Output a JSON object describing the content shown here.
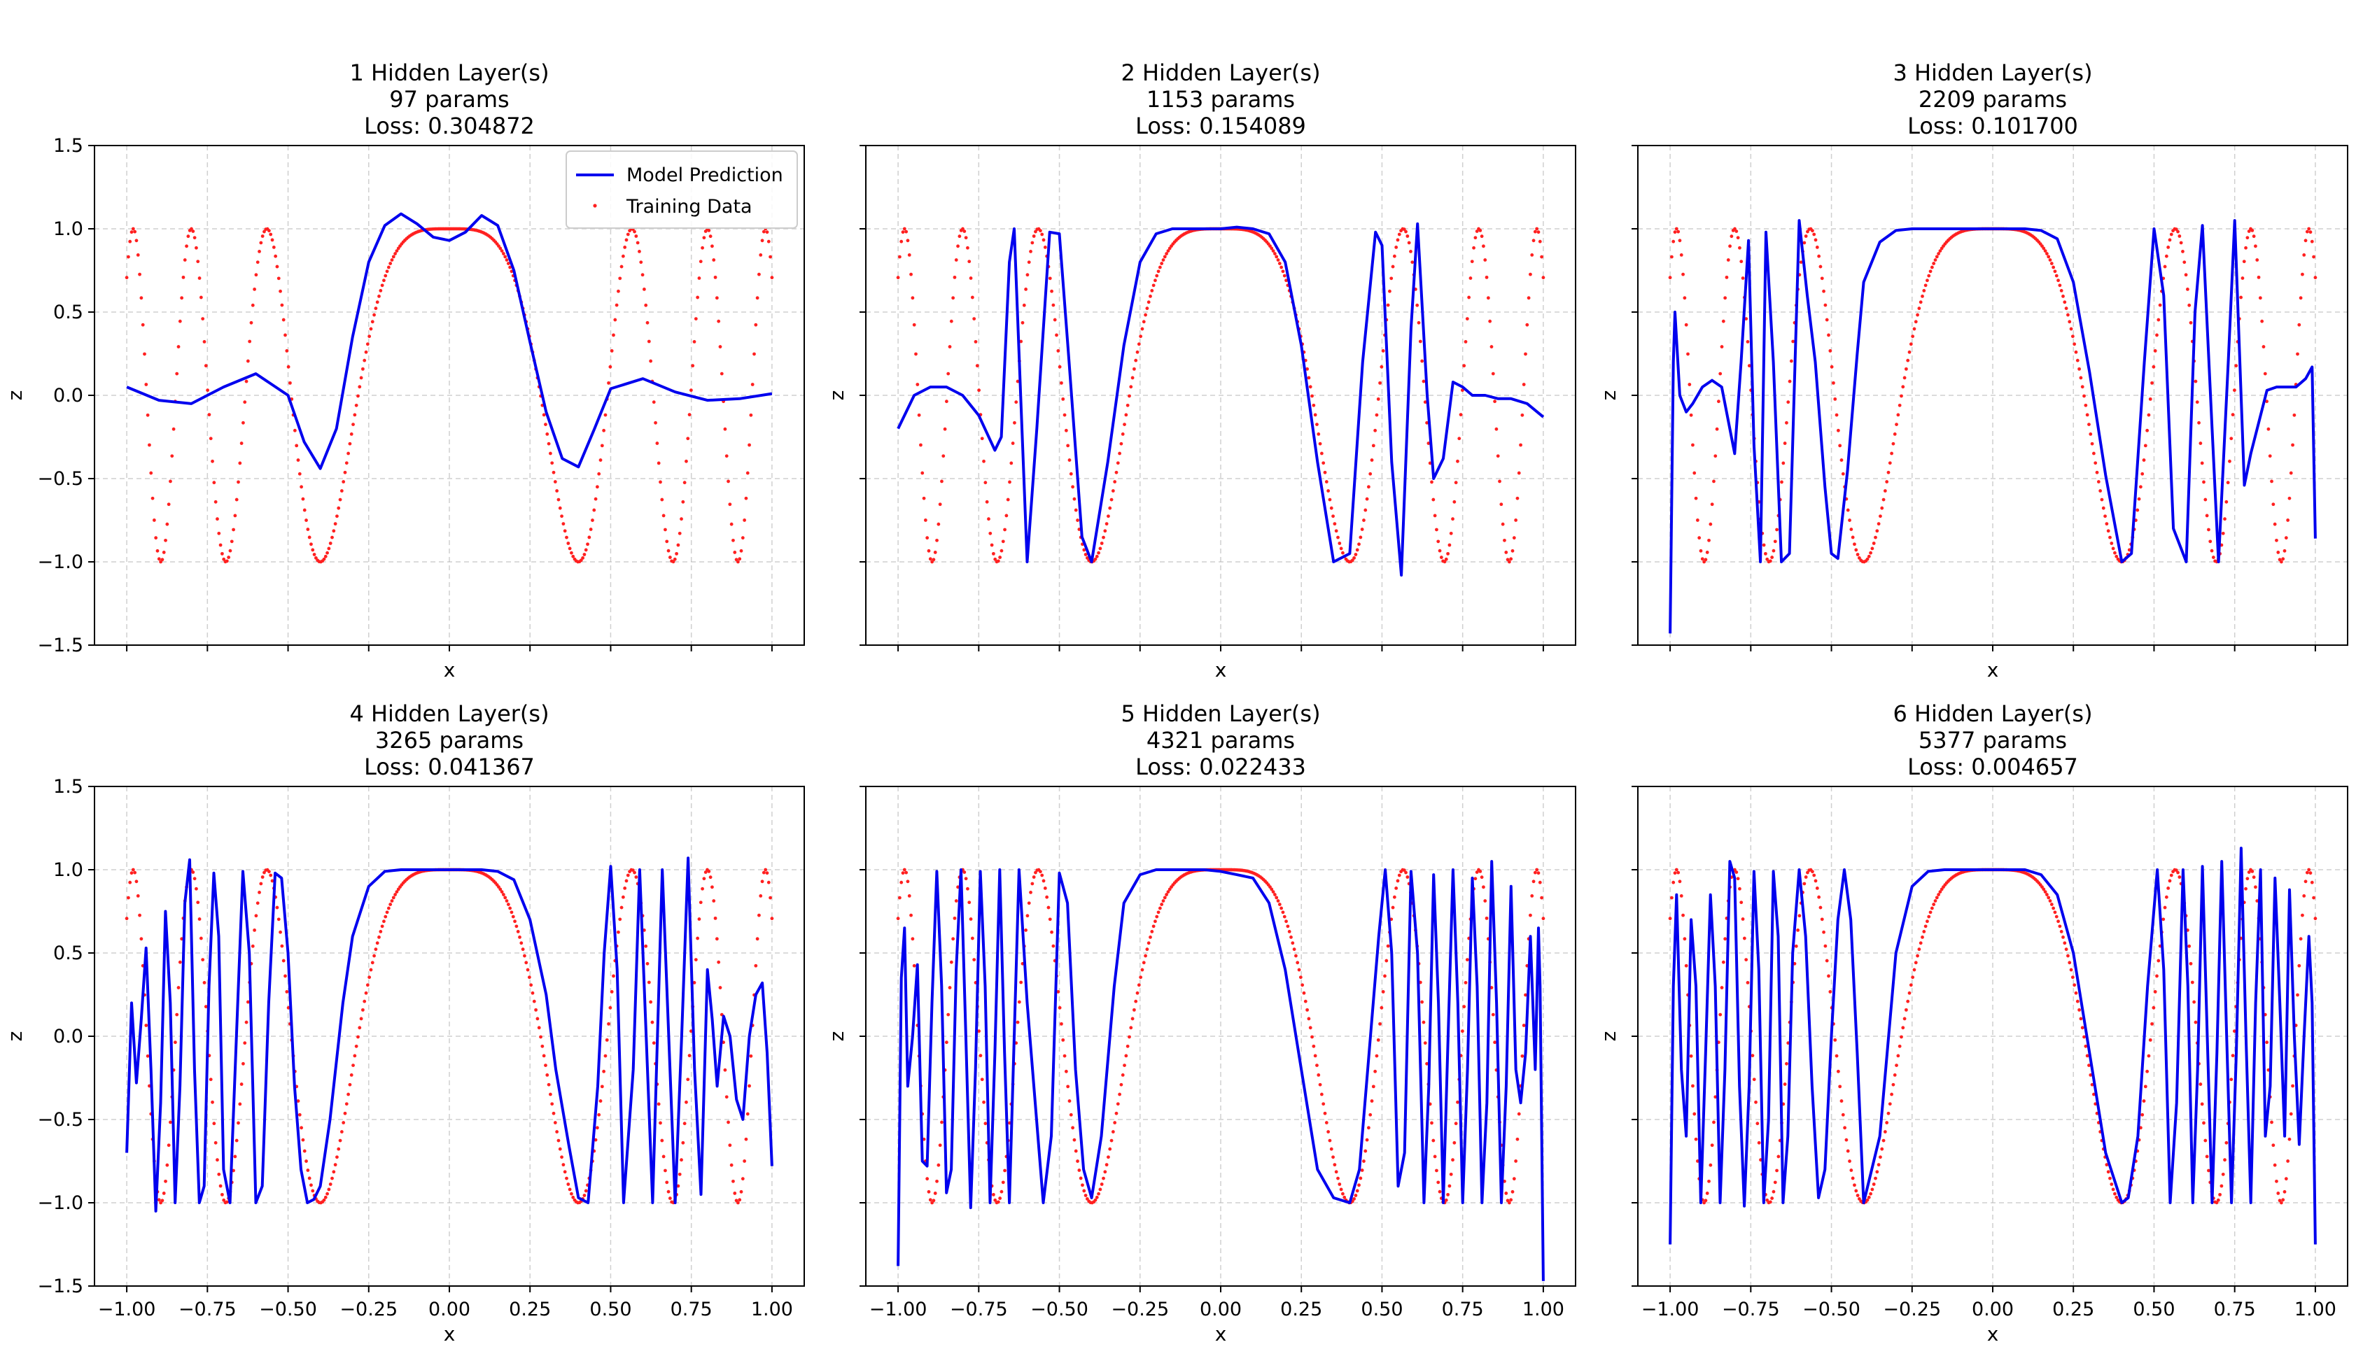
{
  "chart_data": {
    "type": "line",
    "layout": "2x3 grid of subplots, shared x and y axes",
    "panels": [
      {
        "title_lines": [
          "1 Hidden Layer(s)",
          "97 params",
          "Loss: 0.304872"
        ],
        "hidden_layers": 1,
        "params": 97,
        "loss": 0.304872,
        "xlabel": "x",
        "ylabel": "z",
        "legend": true,
        "legend_placement": "top-right"
      },
      {
        "title_lines": [
          "2 Hidden Layer(s)",
          "1153 params",
          "Loss: 0.154089"
        ],
        "hidden_layers": 2,
        "params": 1153,
        "loss": 0.154089,
        "xlabel": "x",
        "ylabel": "z",
        "legend": false
      },
      {
        "title_lines": [
          "3 Hidden Layer(s)",
          "2209 params",
          "Loss: 0.101700"
        ],
        "hidden_layers": 3,
        "params": 2209,
        "loss": 0.1017,
        "xlabel": "x",
        "ylabel": "z",
        "legend": false
      },
      {
        "title_lines": [
          "4 Hidden Layer(s)",
          "3265 params",
          "Loss: 0.041367"
        ],
        "hidden_layers": 4,
        "params": 3265,
        "loss": 0.041367,
        "xlabel": "x",
        "ylabel": "z",
        "legend": false
      },
      {
        "title_lines": [
          "5 Hidden Layer(s)",
          "4321 params",
          "Loss: 0.022433"
        ],
        "hidden_layers": 5,
        "params": 4321,
        "loss": 0.022433,
        "xlabel": "x",
        "ylabel": "z",
        "legend": false
      },
      {
        "title_lines": [
          "6 Hidden Layer(s)",
          "5377 params",
          "Loss: 0.004657"
        ],
        "hidden_layers": 6,
        "params": 5377,
        "loss": 0.004657,
        "xlabel": "x",
        "ylabel": "z",
        "legend": false
      }
    ],
    "series": [
      {
        "name": "Model Prediction",
        "style": "line",
        "color": "#0000ee"
      },
      {
        "name": "Training Data",
        "style": "scatter",
        "color": "#ff2020"
      }
    ],
    "training_function": "z = cos(2 * pi * 0.5 * (x / 0.4)^2)  (estimated from the red training points)",
    "prediction_curves": [
      {
        "x": [
          -1,
          -0.9,
          -0.8,
          -0.7,
          -0.6,
          -0.5,
          -0.45,
          -0.4,
          -0.35,
          -0.3,
          -0.25,
          -0.2,
          -0.15,
          -0.1,
          -0.05,
          0,
          0.05,
          0.1,
          0.15,
          0.2,
          0.25,
          0.3,
          0.35,
          0.4,
          0.45,
          0.5,
          0.6,
          0.7,
          0.8,
          0.9,
          1
        ],
        "y": [
          0.05,
          -0.03,
          -0.05,
          0.05,
          0.13,
          0.0,
          -0.28,
          -0.44,
          -0.2,
          0.35,
          0.8,
          1.02,
          1.09,
          1.03,
          0.95,
          0.93,
          0.98,
          1.08,
          1.02,
          0.75,
          0.32,
          -0.1,
          -0.38,
          -0.43,
          -0.2,
          0.04,
          0.1,
          0.02,
          -0.03,
          -0.02,
          0.01
        ]
      },
      {
        "x": [
          -1,
          -0.95,
          -0.9,
          -0.85,
          -0.8,
          -0.75,
          -0.7,
          -0.68,
          -0.655,
          -0.64,
          -0.62,
          -0.6,
          -0.57,
          -0.53,
          -0.5,
          -0.47,
          -0.43,
          -0.4,
          -0.35,
          -0.3,
          -0.25,
          -0.2,
          -0.15,
          -0.1,
          -0.05,
          0,
          0.05,
          0.1,
          0.15,
          0.2,
          0.25,
          0.3,
          0.35,
          0.4,
          0.44,
          0.48,
          0.5,
          0.53,
          0.56,
          0.59,
          0.61,
          0.64,
          0.66,
          0.69,
          0.72,
          0.75,
          0.78,
          0.82,
          0.86,
          0.9,
          0.95,
          1
        ],
        "y": [
          -0.2,
          0.0,
          0.05,
          0.05,
          0.0,
          -0.12,
          -0.33,
          -0.25,
          0.8,
          1.0,
          0.0,
          -1.0,
          -0.2,
          0.98,
          0.97,
          0.2,
          -0.85,
          -1.0,
          -0.4,
          0.3,
          0.8,
          0.97,
          1.0,
          1.0,
          1.0,
          1.0,
          1.01,
          1.0,
          0.97,
          0.8,
          0.3,
          -0.4,
          -1.0,
          -0.95,
          0.2,
          0.98,
          0.9,
          -0.4,
          -1.08,
          0.4,
          1.03,
          0.0,
          -0.5,
          -0.38,
          0.08,
          0.05,
          0.0,
          0.0,
          -0.02,
          -0.02,
          -0.05,
          -0.13
        ]
      },
      {
        "x": [
          -1,
          -0.99,
          -0.985,
          -0.97,
          -0.95,
          -0.93,
          -0.9,
          -0.87,
          -0.84,
          -0.8,
          -0.78,
          -0.757,
          -0.74,
          -0.72,
          -0.703,
          -0.68,
          -0.655,
          -0.63,
          -0.6,
          -0.575,
          -0.55,
          -0.52,
          -0.5,
          -0.48,
          -0.45,
          -0.42,
          -0.4,
          -0.35,
          -0.3,
          -0.25,
          -0.2,
          -0.15,
          -0.1,
          -0.05,
          0,
          0.05,
          0.1,
          0.15,
          0.2,
          0.25,
          0.3,
          0.35,
          0.4,
          0.43,
          0.47,
          0.5,
          0.53,
          0.56,
          0.6,
          0.627,
          0.65,
          0.68,
          0.7,
          0.73,
          0.75,
          0.78,
          0.8,
          0.85,
          0.88,
          0.91,
          0.94,
          0.97,
          0.99,
          1
        ],
        "y": [
          -1.43,
          0.2,
          0.5,
          0.0,
          -0.1,
          -0.05,
          0.05,
          0.09,
          0.05,
          -0.35,
          0.2,
          0.93,
          -0.3,
          -1.0,
          0.98,
          0.2,
          -1.0,
          -0.95,
          1.05,
          0.6,
          0.2,
          -0.55,
          -0.95,
          -0.98,
          -0.45,
          0.25,
          0.68,
          0.92,
          0.99,
          1.0,
          1.0,
          1.0,
          1.0,
          1.0,
          1.0,
          1.0,
          1.0,
          0.99,
          0.94,
          0.68,
          0.14,
          -0.48,
          -1.0,
          -0.95,
          0.2,
          1.0,
          0.6,
          -0.8,
          -1.0,
          0.5,
          1.02,
          -0.2,
          -1.0,
          0.2,
          1.05,
          -0.54,
          -0.35,
          0.03,
          0.05,
          0.05,
          0.05,
          0.1,
          0.17,
          -0.86
        ]
      },
      {
        "x": [
          -1,
          -0.985,
          -0.97,
          -0.955,
          -0.94,
          -0.925,
          -0.91,
          -0.895,
          -0.88,
          -0.865,
          -0.85,
          -0.835,
          -0.82,
          -0.805,
          -0.79,
          -0.775,
          -0.76,
          -0.745,
          -0.73,
          -0.715,
          -0.7,
          -0.68,
          -0.66,
          -0.64,
          -0.62,
          -0.6,
          -0.58,
          -0.56,
          -0.54,
          -0.52,
          -0.5,
          -0.48,
          -0.46,
          -0.44,
          -0.42,
          -0.4,
          -0.37,
          -0.33,
          -0.3,
          -0.25,
          -0.2,
          -0.15,
          -0.1,
          -0.05,
          0,
          0.05,
          0.1,
          0.15,
          0.2,
          0.25,
          0.3,
          0.33,
          0.37,
          0.4,
          0.43,
          0.46,
          0.48,
          0.5,
          0.52,
          0.54,
          0.57,
          0.59,
          0.61,
          0.63,
          0.645,
          0.66,
          0.68,
          0.7,
          0.72,
          0.74,
          0.76,
          0.78,
          0.8,
          0.815,
          0.83,
          0.85,
          0.87,
          0.89,
          0.91,
          0.93,
          0.95,
          0.97,
          0.985,
          1
        ],
        "y": [
          -0.7,
          0.2,
          -0.28,
          0.1,
          0.53,
          -0.2,
          -1.05,
          -0.4,
          0.75,
          0.2,
          -1.0,
          -0.3,
          0.8,
          1.06,
          -0.2,
          -1.0,
          -0.9,
          0.3,
          0.98,
          0.6,
          -0.8,
          -1.0,
          0.0,
          0.99,
          0.5,
          -1.0,
          -0.9,
          0.2,
          0.98,
          0.95,
          0.5,
          -0.3,
          -0.8,
          -1.0,
          -0.98,
          -0.9,
          -0.5,
          0.2,
          0.6,
          0.9,
          0.99,
          1.0,
          1.0,
          1.0,
          1.0,
          1.0,
          1.0,
          0.99,
          0.94,
          0.7,
          0.25,
          -0.2,
          -0.65,
          -0.97,
          -1.0,
          -0.3,
          0.5,
          1.02,
          0.4,
          -1.0,
          -0.2,
          1.0,
          0.0,
          -1.0,
          0.0,
          1.0,
          0.0,
          -1.0,
          0.0,
          1.07,
          -0.2,
          -0.95,
          0.4,
          0.1,
          -0.3,
          0.12,
          0.0,
          -0.38,
          -0.5,
          0.0,
          0.25,
          0.32,
          -0.1,
          -0.78
        ]
      },
      {
        "x": [
          -1,
          -0.99,
          -0.98,
          -0.97,
          -0.955,
          -0.94,
          -0.925,
          -0.91,
          -0.895,
          -0.88,
          -0.865,
          -0.85,
          -0.835,
          -0.82,
          -0.805,
          -0.79,
          -0.775,
          -0.76,
          -0.745,
          -0.73,
          -0.715,
          -0.7,
          -0.685,
          -0.67,
          -0.655,
          -0.64,
          -0.625,
          -0.6,
          -0.575,
          -0.55,
          -0.525,
          -0.5,
          -0.475,
          -0.45,
          -0.425,
          -0.4,
          -0.37,
          -0.33,
          -0.3,
          -0.25,
          -0.2,
          -0.15,
          -0.1,
          -0.05,
          0,
          0.05,
          0.1,
          0.15,
          0.2,
          0.25,
          0.3,
          0.35,
          0.4,
          0.43,
          0.46,
          0.49,
          0.51,
          0.53,
          0.55,
          0.57,
          0.59,
          0.61,
          0.63,
          0.645,
          0.66,
          0.675,
          0.69,
          0.705,
          0.72,
          0.735,
          0.75,
          0.765,
          0.78,
          0.795,
          0.81,
          0.825,
          0.84,
          0.855,
          0.87,
          0.885,
          0.9,
          0.915,
          0.93,
          0.945,
          0.96,
          0.975,
          0.985,
          0.99,
          1
        ],
        "y": [
          -1.38,
          0.35,
          0.65,
          -0.3,
          0.0,
          0.43,
          -0.75,
          -0.78,
          0.2,
          0.99,
          0.3,
          -0.94,
          -0.8,
          0.4,
          1.0,
          0.0,
          -1.03,
          -0.2,
          0.99,
          0.3,
          -1.0,
          -0.1,
          1.0,
          -0.1,
          -1.0,
          0.0,
          1.0,
          0.2,
          -0.4,
          -1.0,
          -0.6,
          0.98,
          0.8,
          -0.2,
          -0.8,
          -0.97,
          -0.6,
          0.3,
          0.8,
          0.97,
          1.0,
          1.0,
          1.0,
          1.0,
          0.99,
          0.97,
          0.95,
          0.8,
          0.4,
          -0.2,
          -0.8,
          -0.97,
          -1.0,
          -0.8,
          -0.1,
          0.6,
          1.0,
          0.5,
          -0.9,
          -0.7,
          0.99,
          0.5,
          -1.0,
          -0.3,
          0.97,
          0.2,
          -1.0,
          0.0,
          1.0,
          0.2,
          -1.0,
          -0.2,
          0.95,
          0.3,
          -1.0,
          -0.4,
          1.05,
          0.2,
          -1.0,
          -0.3,
          0.9,
          -0.2,
          -0.4,
          -0.1,
          0.6,
          -0.2,
          0.65,
          0.3,
          -1.47
        ]
      },
      {
        "x": [
          -1,
          -0.99,
          -0.98,
          -0.965,
          -0.95,
          -0.935,
          -0.92,
          -0.905,
          -0.89,
          -0.875,
          -0.86,
          -0.845,
          -0.83,
          -0.815,
          -0.8,
          -0.785,
          -0.77,
          -0.755,
          -0.74,
          -0.725,
          -0.71,
          -0.695,
          -0.68,
          -0.665,
          -0.65,
          -0.635,
          -0.62,
          -0.6,
          -0.58,
          -0.56,
          -0.54,
          -0.52,
          -0.5,
          -0.48,
          -0.46,
          -0.44,
          -0.42,
          -0.4,
          -0.35,
          -0.3,
          -0.25,
          -0.2,
          -0.15,
          -0.1,
          -0.05,
          0,
          0.05,
          0.1,
          0.15,
          0.2,
          0.25,
          0.3,
          0.35,
          0.4,
          0.42,
          0.45,
          0.48,
          0.51,
          0.53,
          0.55,
          0.57,
          0.59,
          0.605,
          0.62,
          0.635,
          0.65,
          0.665,
          0.68,
          0.695,
          0.71,
          0.725,
          0.74,
          0.755,
          0.77,
          0.785,
          0.8,
          0.815,
          0.83,
          0.845,
          0.86,
          0.875,
          0.89,
          0.905,
          0.92,
          0.935,
          0.95,
          0.965,
          0.98,
          0.99,
          1
        ],
        "y": [
          -1.25,
          0.3,
          0.85,
          -0.2,
          -0.6,
          0.7,
          0.3,
          -1.0,
          -0.1,
          0.85,
          0.3,
          -1.0,
          -0.2,
          1.05,
          0.95,
          -0.3,
          -1.02,
          -0.3,
          0.99,
          0.4,
          -1.0,
          -0.5,
          0.99,
          0.6,
          -1.0,
          -0.6,
          0.5,
          1.0,
          0.6,
          -0.3,
          -0.97,
          -0.8,
          0.0,
          0.7,
          1.0,
          0.7,
          -0.1,
          -1.0,
          -0.6,
          0.5,
          0.9,
          0.99,
          1.0,
          1.0,
          1.0,
          1.0,
          1.0,
          1.0,
          0.97,
          0.85,
          0.5,
          -0.1,
          -0.7,
          -1.0,
          -0.97,
          -0.6,
          0.3,
          1.0,
          0.4,
          -1.0,
          -0.4,
          1.0,
          0.3,
          -1.0,
          -0.2,
          1.02,
          0.0,
          -1.0,
          -0.1,
          1.05,
          0.0,
          -1.0,
          -0.1,
          1.13,
          0.0,
          -1.0,
          0.2,
          1.0,
          -0.6,
          -0.3,
          0.95,
          0.2,
          -0.6,
          0.88,
          0.0,
          -0.65,
          0.0,
          0.6,
          0.2,
          -1.25
        ]
      }
    ],
    "xlim": [
      -1.1,
      1.1
    ],
    "ylim": [
      -1.5,
      1.5
    ],
    "xticks": [
      -1.0,
      -0.75,
      -0.5,
      -0.25,
      0.0,
      0.25,
      0.5,
      0.75,
      1.0
    ],
    "xtick_labels": [
      "−1.00",
      "−0.75",
      "−0.50",
      "−0.25",
      "0.00",
      "0.25",
      "0.50",
      "0.75",
      "1.00"
    ],
    "yticks": [
      1.5,
      1.0,
      0.5,
      0.0,
      -0.5,
      -1.0,
      -1.5
    ],
    "ytick_labels": [
      "1.5",
      "1.0",
      "0.5",
      "0.0",
      "−0.5",
      "−1.0",
      "−1.5"
    ],
    "grid": true
  },
  "colors": {
    "prediction": "#0000ee",
    "training": "#ff2020",
    "grid": "#b0b0b0"
  }
}
